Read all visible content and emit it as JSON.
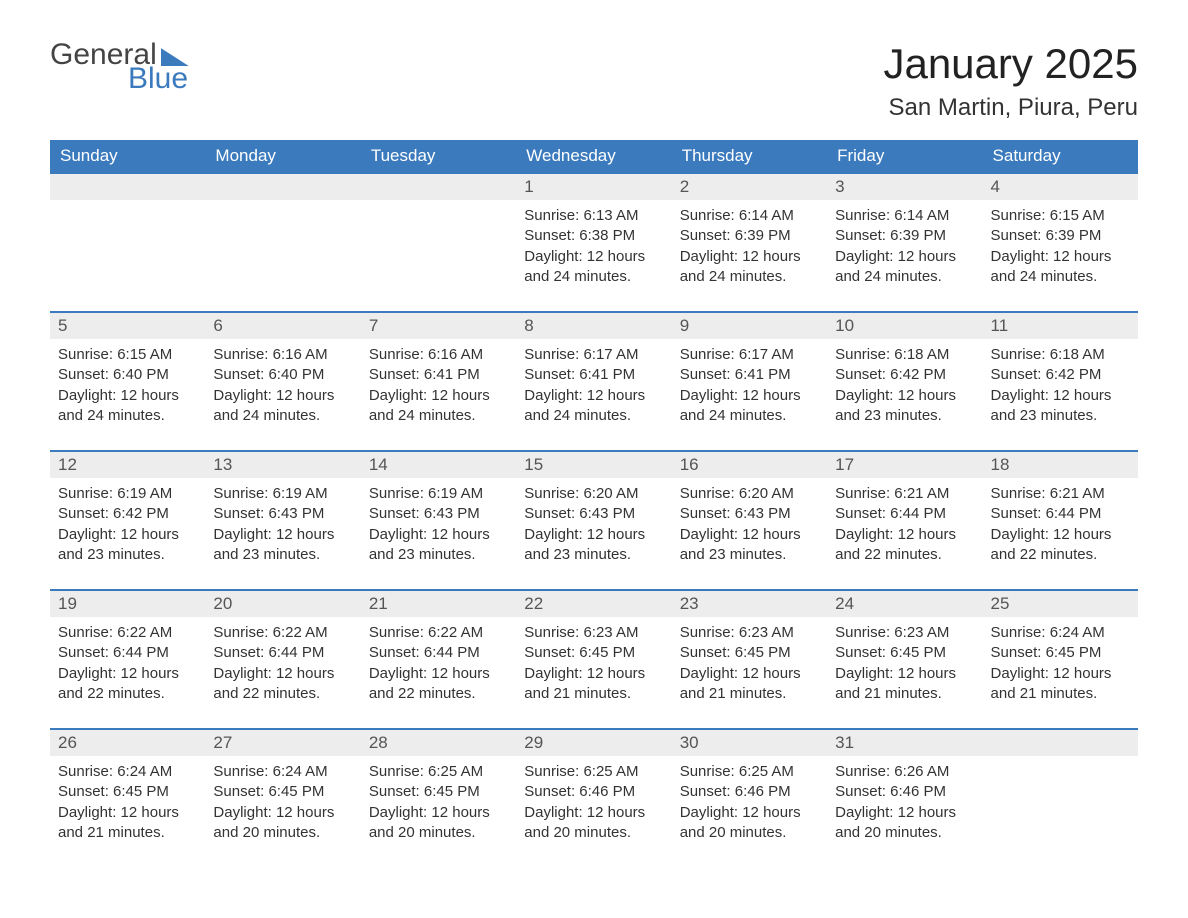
{
  "logo": {
    "word1": "General",
    "word2": "Blue"
  },
  "title": "January 2025",
  "location": "San Martin, Piura, Peru",
  "colors": {
    "brand_blue": "#3a7abd",
    "header_text": "#ffffff",
    "daynum_bg": "#ededed",
    "body_text": "#333333",
    "page_bg": "#ffffff"
  },
  "day_headers": [
    "Sunday",
    "Monday",
    "Tuesday",
    "Wednesday",
    "Thursday",
    "Friday",
    "Saturday"
  ],
  "weeks": [
    [
      null,
      null,
      null,
      {
        "n": "1",
        "sunrise": "Sunrise: 6:13 AM",
        "sunset": "Sunset: 6:38 PM",
        "dl1": "Daylight: 12 hours",
        "dl2": "and 24 minutes."
      },
      {
        "n": "2",
        "sunrise": "Sunrise: 6:14 AM",
        "sunset": "Sunset: 6:39 PM",
        "dl1": "Daylight: 12 hours",
        "dl2": "and 24 minutes."
      },
      {
        "n": "3",
        "sunrise": "Sunrise: 6:14 AM",
        "sunset": "Sunset: 6:39 PM",
        "dl1": "Daylight: 12 hours",
        "dl2": "and 24 minutes."
      },
      {
        "n": "4",
        "sunrise": "Sunrise: 6:15 AM",
        "sunset": "Sunset: 6:39 PM",
        "dl1": "Daylight: 12 hours",
        "dl2": "and 24 minutes."
      }
    ],
    [
      {
        "n": "5",
        "sunrise": "Sunrise: 6:15 AM",
        "sunset": "Sunset: 6:40 PM",
        "dl1": "Daylight: 12 hours",
        "dl2": "and 24 minutes."
      },
      {
        "n": "6",
        "sunrise": "Sunrise: 6:16 AM",
        "sunset": "Sunset: 6:40 PM",
        "dl1": "Daylight: 12 hours",
        "dl2": "and 24 minutes."
      },
      {
        "n": "7",
        "sunrise": "Sunrise: 6:16 AM",
        "sunset": "Sunset: 6:41 PM",
        "dl1": "Daylight: 12 hours",
        "dl2": "and 24 minutes."
      },
      {
        "n": "8",
        "sunrise": "Sunrise: 6:17 AM",
        "sunset": "Sunset: 6:41 PM",
        "dl1": "Daylight: 12 hours",
        "dl2": "and 24 minutes."
      },
      {
        "n": "9",
        "sunrise": "Sunrise: 6:17 AM",
        "sunset": "Sunset: 6:41 PM",
        "dl1": "Daylight: 12 hours",
        "dl2": "and 24 minutes."
      },
      {
        "n": "10",
        "sunrise": "Sunrise: 6:18 AM",
        "sunset": "Sunset: 6:42 PM",
        "dl1": "Daylight: 12 hours",
        "dl2": "and 23 minutes."
      },
      {
        "n": "11",
        "sunrise": "Sunrise: 6:18 AM",
        "sunset": "Sunset: 6:42 PM",
        "dl1": "Daylight: 12 hours",
        "dl2": "and 23 minutes."
      }
    ],
    [
      {
        "n": "12",
        "sunrise": "Sunrise: 6:19 AM",
        "sunset": "Sunset: 6:42 PM",
        "dl1": "Daylight: 12 hours",
        "dl2": "and 23 minutes."
      },
      {
        "n": "13",
        "sunrise": "Sunrise: 6:19 AM",
        "sunset": "Sunset: 6:43 PM",
        "dl1": "Daylight: 12 hours",
        "dl2": "and 23 minutes."
      },
      {
        "n": "14",
        "sunrise": "Sunrise: 6:19 AM",
        "sunset": "Sunset: 6:43 PM",
        "dl1": "Daylight: 12 hours",
        "dl2": "and 23 minutes."
      },
      {
        "n": "15",
        "sunrise": "Sunrise: 6:20 AM",
        "sunset": "Sunset: 6:43 PM",
        "dl1": "Daylight: 12 hours",
        "dl2": "and 23 minutes."
      },
      {
        "n": "16",
        "sunrise": "Sunrise: 6:20 AM",
        "sunset": "Sunset: 6:43 PM",
        "dl1": "Daylight: 12 hours",
        "dl2": "and 23 minutes."
      },
      {
        "n": "17",
        "sunrise": "Sunrise: 6:21 AM",
        "sunset": "Sunset: 6:44 PM",
        "dl1": "Daylight: 12 hours",
        "dl2": "and 22 minutes."
      },
      {
        "n": "18",
        "sunrise": "Sunrise: 6:21 AM",
        "sunset": "Sunset: 6:44 PM",
        "dl1": "Daylight: 12 hours",
        "dl2": "and 22 minutes."
      }
    ],
    [
      {
        "n": "19",
        "sunrise": "Sunrise: 6:22 AM",
        "sunset": "Sunset: 6:44 PM",
        "dl1": "Daylight: 12 hours",
        "dl2": "and 22 minutes."
      },
      {
        "n": "20",
        "sunrise": "Sunrise: 6:22 AM",
        "sunset": "Sunset: 6:44 PM",
        "dl1": "Daylight: 12 hours",
        "dl2": "and 22 minutes."
      },
      {
        "n": "21",
        "sunrise": "Sunrise: 6:22 AM",
        "sunset": "Sunset: 6:44 PM",
        "dl1": "Daylight: 12 hours",
        "dl2": "and 22 minutes."
      },
      {
        "n": "22",
        "sunrise": "Sunrise: 6:23 AM",
        "sunset": "Sunset: 6:45 PM",
        "dl1": "Daylight: 12 hours",
        "dl2": "and 21 minutes."
      },
      {
        "n": "23",
        "sunrise": "Sunrise: 6:23 AM",
        "sunset": "Sunset: 6:45 PM",
        "dl1": "Daylight: 12 hours",
        "dl2": "and 21 minutes."
      },
      {
        "n": "24",
        "sunrise": "Sunrise: 6:23 AM",
        "sunset": "Sunset: 6:45 PM",
        "dl1": "Daylight: 12 hours",
        "dl2": "and 21 minutes."
      },
      {
        "n": "25",
        "sunrise": "Sunrise: 6:24 AM",
        "sunset": "Sunset: 6:45 PM",
        "dl1": "Daylight: 12 hours",
        "dl2": "and 21 minutes."
      }
    ],
    [
      {
        "n": "26",
        "sunrise": "Sunrise: 6:24 AM",
        "sunset": "Sunset: 6:45 PM",
        "dl1": "Daylight: 12 hours",
        "dl2": "and 21 minutes."
      },
      {
        "n": "27",
        "sunrise": "Sunrise: 6:24 AM",
        "sunset": "Sunset: 6:45 PM",
        "dl1": "Daylight: 12 hours",
        "dl2": "and 20 minutes."
      },
      {
        "n": "28",
        "sunrise": "Sunrise: 6:25 AM",
        "sunset": "Sunset: 6:45 PM",
        "dl1": "Daylight: 12 hours",
        "dl2": "and 20 minutes."
      },
      {
        "n": "29",
        "sunrise": "Sunrise: 6:25 AM",
        "sunset": "Sunset: 6:46 PM",
        "dl1": "Daylight: 12 hours",
        "dl2": "and 20 minutes."
      },
      {
        "n": "30",
        "sunrise": "Sunrise: 6:25 AM",
        "sunset": "Sunset: 6:46 PM",
        "dl1": "Daylight: 12 hours",
        "dl2": "and 20 minutes."
      },
      {
        "n": "31",
        "sunrise": "Sunrise: 6:26 AM",
        "sunset": "Sunset: 6:46 PM",
        "dl1": "Daylight: 12 hours",
        "dl2": "and 20 minutes."
      },
      null
    ]
  ]
}
